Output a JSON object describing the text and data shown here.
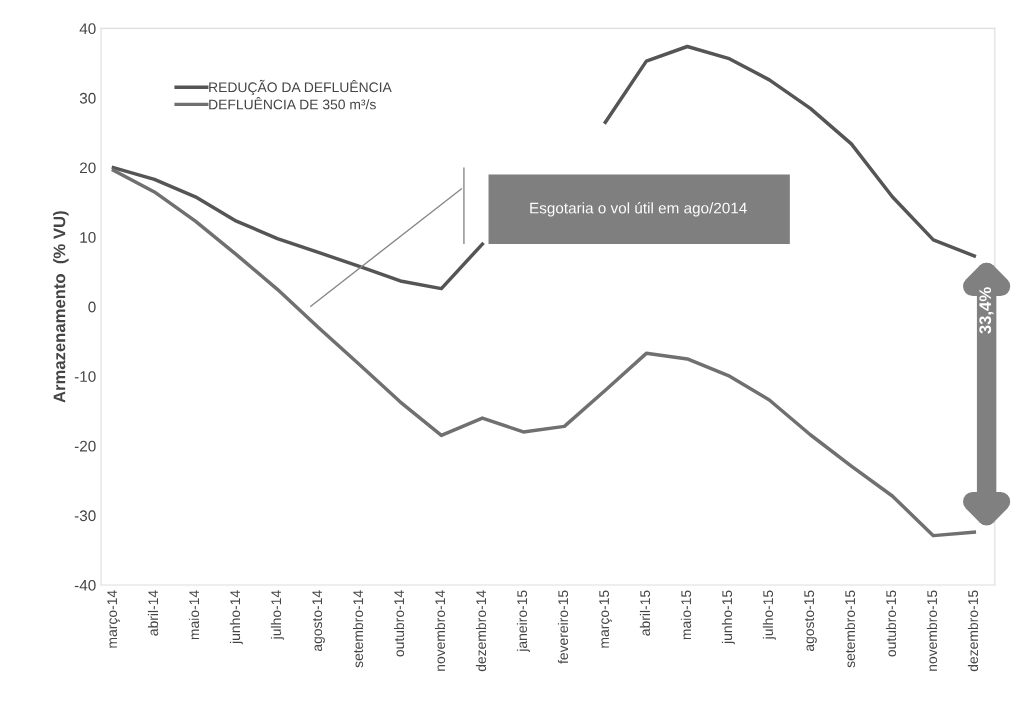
{
  "chart_data": {
    "type": "line",
    "ylabel": "Armazenamento  (% VU)",
    "categories": [
      "março-14",
      "abril-14",
      "maio-14",
      "junho-14",
      "julho-14",
      "agosto-14",
      "setembro-14",
      "outubro-14",
      "novembro-14",
      "dezembro-14",
      "janeiro-15",
      "fevereiro-15",
      "março-15",
      "abril-15",
      "maio-15",
      "junho-15",
      "julho-15",
      "agosto-15",
      "setembro-15",
      "outubro-15",
      "novembro-15",
      "dezembro-15"
    ],
    "series": [
      {
        "name": "REDUÇÃO DA DEFLUÊNCIA",
        "color": "#555555",
        "values": [
          20,
          18.3,
          15.8,
          12.3,
          9.8,
          7.8,
          5.8,
          3.7,
          2.6,
          9,
          null,
          null,
          26.5,
          35.3,
          37.4,
          35.7,
          32.6,
          28.5,
          23.4,
          15.8,
          9.6,
          7.3
        ]
      },
      {
        "name": "DEFLUÊNCIA DE 350 m³/s",
        "color": "#707070",
        "values": [
          19.6,
          16.5,
          12.3,
          7.5,
          2.5,
          -3,
          -8.3,
          -13.7,
          -18.5,
          -16,
          -18,
          -17.2,
          -12,
          -6.7,
          -7.5,
          -9.9,
          -13.4,
          -18.4,
          -22.9,
          -27.2,
          -32.9,
          -32.4
        ]
      }
    ],
    "ylim": [
      -40,
      40
    ],
    "yticks": [
      -40,
      -30,
      -20,
      -10,
      0,
      10,
      20,
      30,
      40
    ],
    "grid": false,
    "legend": "top left",
    "marker": "none",
    "line_style": "solid",
    "annotations": [
      "Esgotaria o vol útil em ago/2014",
      "33,4%"
    ]
  }
}
